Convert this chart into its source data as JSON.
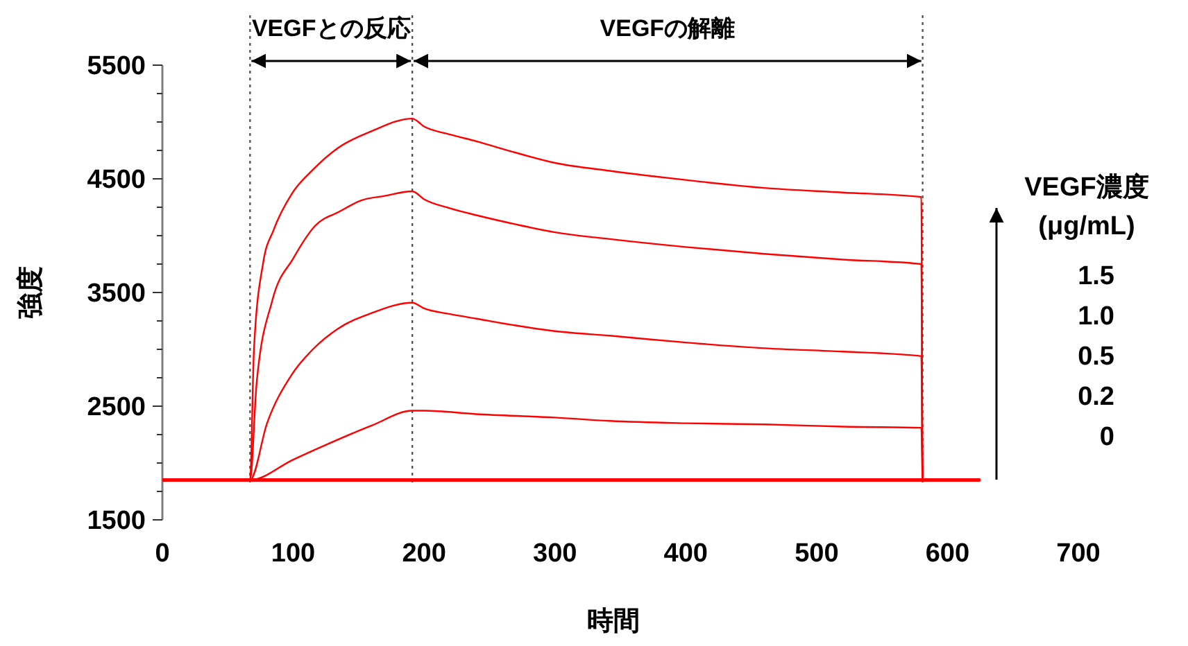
{
  "chart_data": {
    "type": "line",
    "xlabel": "時間",
    "ylabel": "強度",
    "xlim": [
      0,
      700
    ],
    "xticks": [
      0,
      100,
      200,
      300,
      400,
      500,
      600,
      700
    ],
    "ylim": [
      1500,
      5500
    ],
    "yticks": [
      1500,
      {
        "value": 1750,
        "label": null
      },
      {
        "value": 2000,
        "label": null
      },
      {
        "value": 2250,
        "label": null
      },
      2500,
      {
        "value": 2750,
        "label": null
      },
      {
        "value": 3000,
        "label": null
      },
      {
        "value": 3250,
        "label": null
      },
      3500,
      {
        "value": 3750,
        "label": null
      },
      {
        "value": 4000,
        "label": null
      },
      {
        "value": 4250,
        "label": null
      },
      4500,
      {
        "value": 4750,
        "label": null
      },
      {
        "value": 5000,
        "label": null
      },
      {
        "value": 5250,
        "label": null
      },
      5500
    ],
    "grid": false,
    "legend": "right",
    "legend_title": "VEGF濃度 (μg/mL)",
    "line_style": "solid",
    "annotations": [
      "VEGFとの反応",
      "VEGFの解離"
    ],
    "ref_lines": [
      {
        "axis": "x",
        "value": 67,
        "color": "#555555",
        "line_style": "dotted"
      },
      {
        "axis": "x",
        "value": 191,
        "color": "#555555",
        "line_style": "dotted"
      },
      {
        "axis": "x",
        "value": 581,
        "color": "#555555",
        "line_style": "dotted"
      }
    ],
    "series": [
      {
        "name": "1.5",
        "color": "#ff0000",
        "x": [
          0,
          67,
          70,
          77,
          85,
          99,
          115,
          134,
          160,
          191,
          200,
          220,
          240,
          270,
          300,
          342,
          400,
          460,
          520,
          580,
          581,
          625
        ],
        "values": [
          1850,
          1850,
          3000,
          3760,
          4050,
          4370,
          4580,
          4770,
          4920,
          5030,
          4960,
          4890,
          4830,
          4730,
          4640,
          4570,
          4490,
          4420,
          4380,
          4340,
          1850,
          1850
        ]
      },
      {
        "name": "1.0",
        "color": "#ff0000",
        "x": [
          0,
          67,
          72,
          84,
          100,
          117,
          135,
          152,
          170,
          191,
          200,
          220,
          240,
          270,
          300,
          342,
          400,
          460,
          520,
          580,
          581,
          625
        ],
        "values": [
          1850,
          1850,
          2700,
          3430,
          3800,
          4090,
          4210,
          4310,
          4350,
          4390,
          4320,
          4240,
          4180,
          4100,
          4030,
          3970,
          3900,
          3840,
          3790,
          3750,
          1850,
          1850
        ]
      },
      {
        "name": "0.5",
        "color": "#ff0000",
        "x": [
          0,
          67,
          80,
          99,
          115,
          134,
          160,
          191,
          200,
          220,
          240,
          270,
          300,
          342,
          400,
          460,
          520,
          580,
          581,
          625
        ],
        "values": [
          1850,
          1850,
          2350,
          2780,
          3000,
          3180,
          3320,
          3410,
          3360,
          3310,
          3270,
          3210,
          3160,
          3120,
          3060,
          3010,
          2980,
          2940,
          1850,
          1850
        ]
      },
      {
        "name": "0.2",
        "color": "#ff0000",
        "x": [
          0,
          67,
          100,
          127,
          160,
          191,
          200,
          240,
          300,
          342,
          400,
          460,
          520,
          580,
          581,
          625
        ],
        "values": [
          1850,
          1850,
          2030,
          2170,
          2330,
          2460,
          2460,
          2430,
          2400,
          2370,
          2350,
          2340,
          2320,
          2310,
          1850,
          1850
        ]
      },
      {
        "name": "0",
        "color": "#ff0000",
        "x": [
          0,
          67,
          191,
          400,
          580,
          625
        ],
        "values": [
          1850,
          1850,
          1850,
          1850,
          1850,
          1850
        ]
      }
    ]
  }
}
